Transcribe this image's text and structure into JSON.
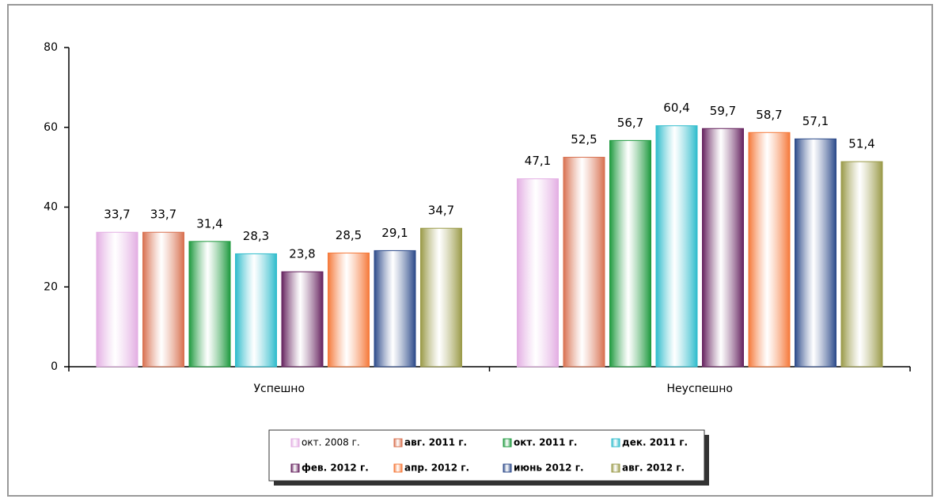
{
  "chart_data": {
    "type": "bar",
    "categories": [
      "Успешно",
      "Неуспешно"
    ],
    "ylim": [
      0,
      80
    ],
    "yticks": [
      0,
      20,
      40,
      60,
      80
    ],
    "series": [
      {
        "name": "окт. 2008 г.",
        "color": "#e3aee3",
        "values": [
          33.7,
          47.1
        ],
        "value_labels": [
          "33,7",
          "47,1"
        ]
      },
      {
        "name": "авг. 2011 г.",
        "color": "#d8704f",
        "values": [
          33.7,
          52.5
        ],
        "value_labels": [
          "33,7",
          "52,5"
        ]
      },
      {
        "name": "окт. 2011 г.",
        "color": "#1f9a3f",
        "values": [
          31.4,
          56.7
        ],
        "value_labels": [
          "31,4",
          "56,7"
        ]
      },
      {
        "name": "дек. 2011 г.",
        "color": "#2fbccc",
        "values": [
          28.3,
          60.4
        ],
        "value_labels": [
          "28,3",
          "60,4"
        ]
      },
      {
        "name": "фев. 2012 г.",
        "color": "#66235f",
        "values": [
          23.8,
          59.7
        ],
        "value_labels": [
          "23,8",
          "59,7"
        ]
      },
      {
        "name": "апр. 2012 г.",
        "color": "#f5793a",
        "values": [
          28.5,
          58.7
        ],
        "value_labels": [
          "28,5",
          "58,7"
        ]
      },
      {
        "name": "июнь 2012 г.",
        "color": "#2c4a8a",
        "values": [
          29.1,
          57.1
        ],
        "value_labels": [
          "29,1",
          "57,1"
        ]
      },
      {
        "name": "авг. 2012 г.",
        "color": "#9a9a48",
        "values": [
          34.7,
          51.4
        ],
        "value_labels": [
          "34,7",
          "51,4"
        ]
      }
    ]
  }
}
